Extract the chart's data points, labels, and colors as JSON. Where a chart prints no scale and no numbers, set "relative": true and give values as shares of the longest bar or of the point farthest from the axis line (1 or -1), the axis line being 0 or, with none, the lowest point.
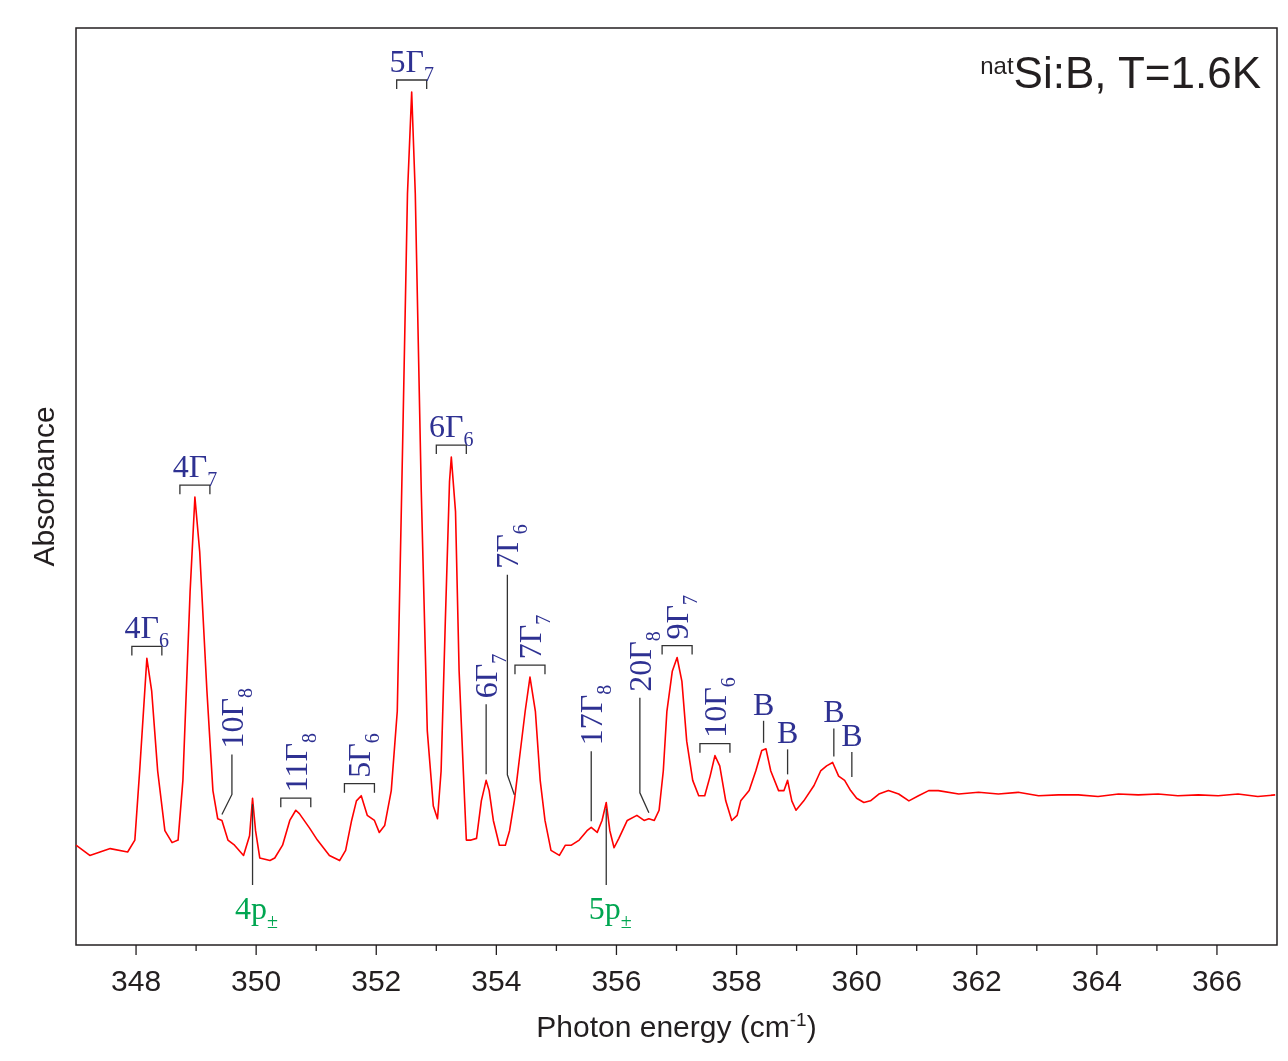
{
  "chart_data": {
    "type": "line",
    "relative": true,
    "xlabel": "Photon energy (cm$^{-1}$)",
    "ylabel": "Absorbance",
    "xlim": [
      347,
      367
    ],
    "xticks": [
      348,
      {
        "value": 349,
        "label": null
      },
      350,
      {
        "value": 351,
        "label": null
      },
      352,
      {
        "value": 353,
        "label": null
      },
      354,
      {
        "value": 355,
        "label": null
      },
      356,
      {
        "value": 357,
        "label": null
      },
      358,
      {
        "value": 359,
        "label": null
      },
      360,
      {
        "value": 361,
        "label": null
      },
      362,
      {
        "value": 363,
        "label": null
      },
      364,
      {
        "value": 365,
        "label": null
      },
      366
    ],
    "tick_labels": "x",
    "grid": false,
    "marker": "none",
    "line_style": "solid",
    "series": [
      {
        "color": "#ff0000",
        "x": [
          347.0,
          347.23,
          347.57,
          347.86,
          347.98,
          348.06,
          348.18,
          348.26,
          348.36,
          348.48,
          348.6,
          348.7,
          348.78,
          348.9,
          348.98,
          349.06,
          349.18,
          349.28,
          349.36,
          349.43,
          349.53,
          349.64,
          349.79,
          349.89,
          349.94,
          349.99,
          350.06,
          350.23,
          350.31,
          350.44,
          350.56,
          350.66,
          350.72,
          350.89,
          351.02,
          351.22,
          351.39,
          351.49,
          351.59,
          351.67,
          351.75,
          351.85,
          351.97,
          352.05,
          352.14,
          352.25,
          352.35,
          352.44,
          352.52,
          352.59,
          352.65,
          352.75,
          352.85,
          352.95,
          353.02,
          353.08,
          353.15,
          353.22,
          353.25,
          353.32,
          353.38,
          353.45,
          353.5,
          353.58,
          353.67,
          353.75,
          353.83,
          353.88,
          353.95,
          354.05,
          354.15,
          354.22,
          354.3,
          354.38,
          354.48,
          354.56,
          354.65,
          354.73,
          354.81,
          354.91,
          355.05,
          355.15,
          355.25,
          355.38,
          355.51,
          355.58,
          355.68,
          355.76,
          355.83,
          355.89,
          355.96,
          356.04,
          356.18,
          356.34,
          356.46,
          356.54,
          356.63,
          356.71,
          356.78,
          356.84,
          356.93,
          357.01,
          357.09,
          357.17,
          357.27,
          357.37,
          357.47,
          357.56,
          357.64,
          357.72,
          357.82,
          357.92,
          358.01,
          358.07,
          358.21,
          358.32,
          358.42,
          358.49,
          358.57,
          358.7,
          358.79,
          358.85,
          358.92,
          358.99,
          359.12,
          359.29,
          359.4,
          359.5,
          359.6,
          359.7,
          359.8,
          359.9,
          360.0,
          360.12,
          360.23,
          360.37,
          360.53,
          360.7,
          360.87,
          361.03,
          361.2,
          361.36,
          361.7,
          362.03,
          362.36,
          362.69,
          363.03,
          363.36,
          363.69,
          364.02,
          364.36,
          364.69,
          365.02,
          365.35,
          365.69,
          366.02,
          366.35,
          366.68,
          366.97
        ],
        "values": [
          0.117,
          0.105,
          0.113,
          0.109,
          0.123,
          0.204,
          0.336,
          0.298,
          0.204,
          0.134,
          0.12,
          0.123,
          0.193,
          0.414,
          0.525,
          0.461,
          0.298,
          0.181,
          0.148,
          0.146,
          0.123,
          0.117,
          0.105,
          0.128,
          0.172,
          0.134,
          0.102,
          0.099,
          0.102,
          0.117,
          0.146,
          0.158,
          0.154,
          0.137,
          0.123,
          0.105,
          0.099,
          0.111,
          0.146,
          0.169,
          0.175,
          0.152,
          0.146,
          0.132,
          0.14,
          0.181,
          0.274,
          0.589,
          0.881,
          1.0,
          0.881,
          0.531,
          0.251,
          0.163,
          0.148,
          0.204,
          0.379,
          0.543,
          0.572,
          0.508,
          0.321,
          0.204,
          0.123,
          0.123,
          0.125,
          0.169,
          0.193,
          0.181,
          0.146,
          0.117,
          0.117,
          0.134,
          0.169,
          0.216,
          0.274,
          0.314,
          0.274,
          0.193,
          0.146,
          0.111,
          0.105,
          0.117,
          0.117,
          0.123,
          0.134,
          0.138,
          0.132,
          0.146,
          0.167,
          0.134,
          0.114,
          0.125,
          0.146,
          0.152,
          0.146,
          0.148,
          0.146,
          0.158,
          0.204,
          0.274,
          0.321,
          0.337,
          0.309,
          0.239,
          0.193,
          0.175,
          0.175,
          0.198,
          0.222,
          0.21,
          0.169,
          0.146,
          0.152,
          0.169,
          0.181,
          0.204,
          0.228,
          0.23,
          0.204,
          0.181,
          0.181,
          0.193,
          0.169,
          0.158,
          0.169,
          0.187,
          0.204,
          0.21,
          0.214,
          0.198,
          0.193,
          0.181,
          0.172,
          0.167,
          0.169,
          0.177,
          0.181,
          0.177,
          0.169,
          0.175,
          0.181,
          0.181,
          0.177,
          0.179,
          0.177,
          0.179,
          0.175,
          0.176,
          0.176,
          0.174,
          0.177,
          0.176,
          0.177,
          0.175,
          0.176,
          0.175,
          0.177,
          0.174,
          0.176
        ]
      }
    ],
    "annotations": [
      {
        "text": "4Γ$_{6}$",
        "x": 348.18,
        "y": 0.336
      },
      {
        "text": "4Γ$_{7}$",
        "x": 348.98,
        "y": 0.525
      },
      {
        "text": "10Γ$_{8}$",
        "x": 349.43,
        "y": 0.146
      },
      {
        "text": "4p$_{±}$",
        "x": 349.94,
        "y": 0.172
      },
      {
        "text": "11Γ$_{8}$",
        "x": 350.66,
        "y": 0.158
      },
      {
        "text": "5Γ$_{6}$",
        "x": 351.72,
        "y": 0.175
      },
      {
        "text": "5Γ$_{7}$",
        "x": 352.59,
        "y": 1.0
      },
      {
        "text": "6Γ$_{6}$",
        "x": 353.25,
        "y": 0.572
      },
      {
        "text": "6Γ$_{7}$",
        "x": 353.83,
        "y": 0.193
      },
      {
        "text": "7Γ$_{6}$",
        "x": 354.3,
        "y": 0.169
      },
      {
        "text": "7Γ$_{7}$",
        "x": 354.56,
        "y": 0.314
      },
      {
        "text": "17Γ$_{8}$",
        "x": 355.58,
        "y": 0.138
      },
      {
        "text": "5p$_{±}$",
        "x": 355.83,
        "y": 0.167
      },
      {
        "text": "20Γ$_{8}$",
        "x": 356.54,
        "y": 0.148
      },
      {
        "text": "9Γ$_{7}$",
        "x": 357.01,
        "y": 0.337
      },
      {
        "text": "10Γ$_{6}$",
        "x": 357.64,
        "y": 0.222
      },
      {
        "text": "B",
        "x": 358.45,
        "y": 0.23
      },
      {
        "text": "B",
        "x": 358.85,
        "y": 0.193
      },
      {
        "text": "B",
        "x": 359.62,
        "y": 0.214
      },
      {
        "text": "B",
        "x": 359.92,
        "y": 0.19
      },
      "$^{nat}$Si:B, T=1.6K"
    ]
  }
}
